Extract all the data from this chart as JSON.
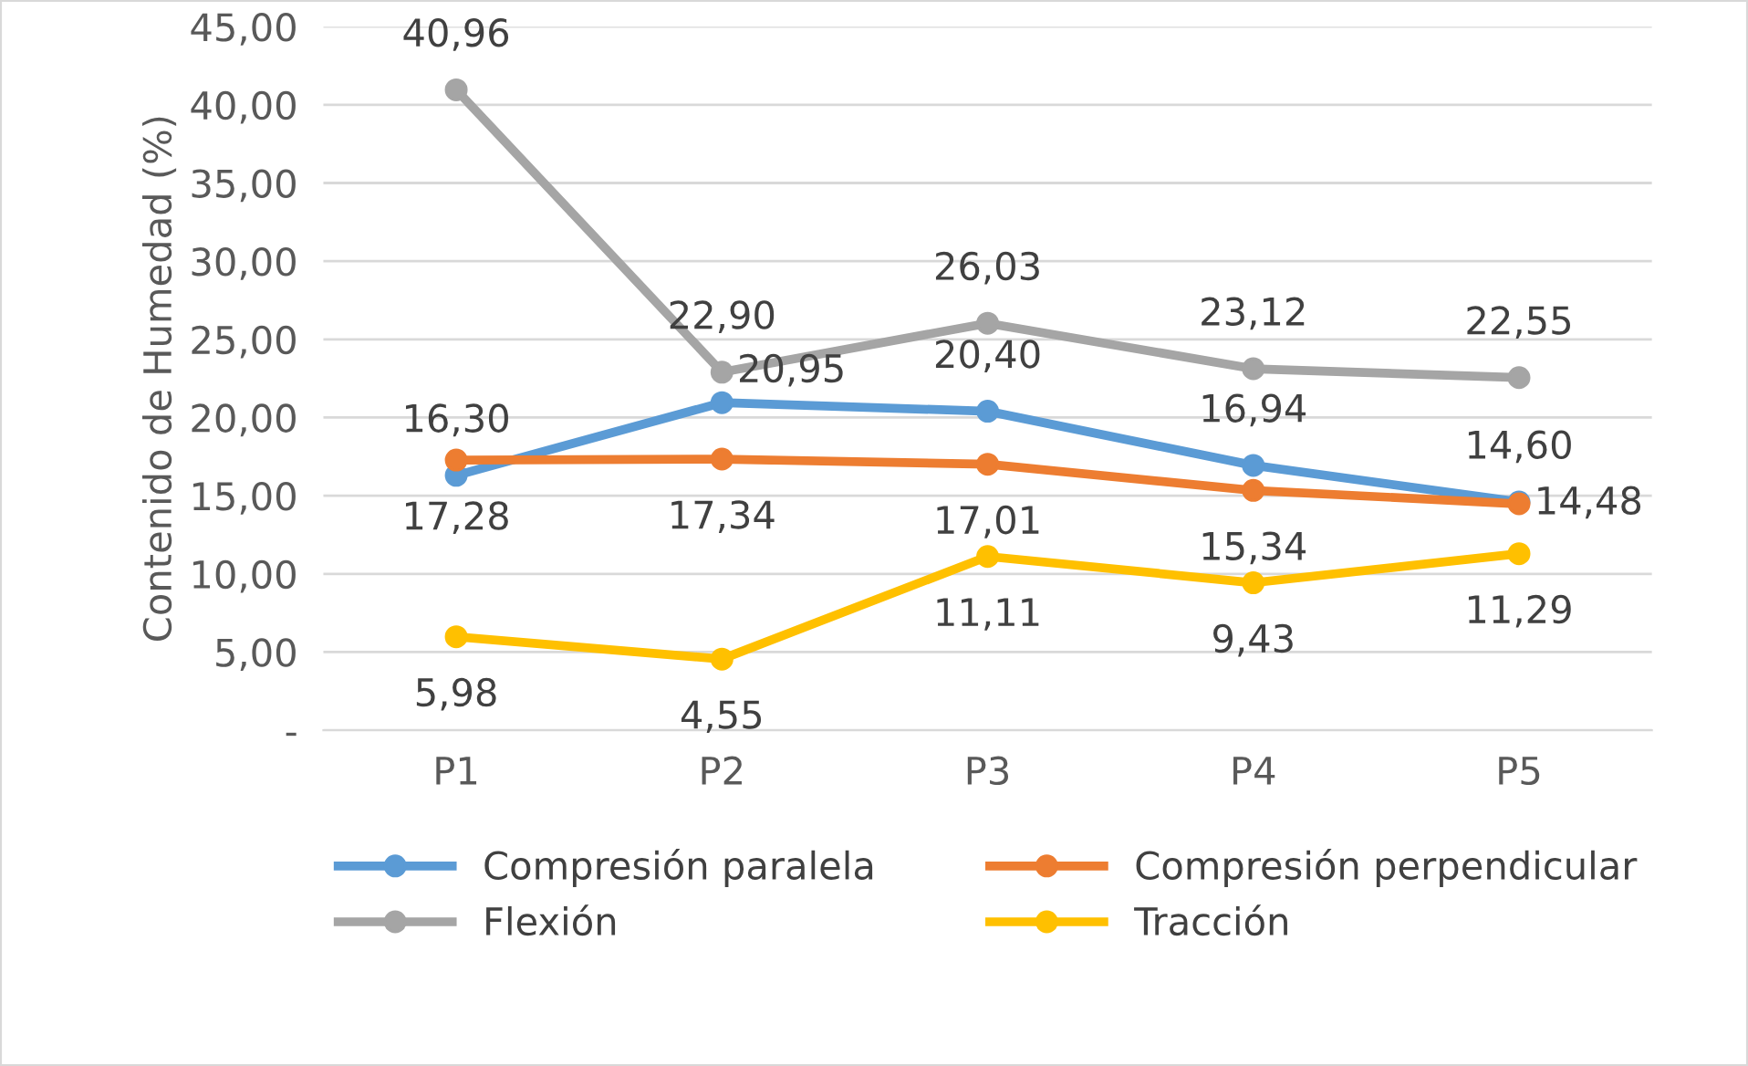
{
  "chart_data": {
    "type": "line",
    "ylabel": "Contenido de Humedad (%)",
    "categories": [
      "P1",
      "P2",
      "P3",
      "P4",
      "P5"
    ],
    "series": [
      {
        "name": "Compresión paralela",
        "color": "#5b9bd5",
        "values": [
          16.3,
          20.95,
          20.4,
          16.94,
          14.6
        ],
        "value_labels": [
          "16,30",
          "20,95",
          "20,40",
          "16,94",
          "14,60"
        ]
      },
      {
        "name": "Compresión perpendicular",
        "color": "#ed7d31",
        "values": [
          17.28,
          17.34,
          17.01,
          15.34,
          14.48
        ],
        "value_labels": [
          "17,28",
          "17,34",
          "17,01",
          "15,34",
          "14,48"
        ]
      },
      {
        "name": "Flexión",
        "color": "#a5a5a5",
        "values": [
          40.96,
          22.9,
          26.03,
          23.12,
          22.55
        ],
        "value_labels": [
          "40,96",
          "22,90",
          "26,03",
          "23,12",
          "22,55"
        ]
      },
      {
        "name": "Tracción",
        "color": "#ffc000",
        "values": [
          5.98,
          4.55,
          11.11,
          9.43,
          11.29
        ],
        "value_labels": [
          "5,98",
          "4,55",
          "11,11",
          "9,43",
          "11,29"
        ]
      }
    ],
    "ylim": [
      0,
      45
    ],
    "yticks": [
      {
        "value": 0,
        "label": "-"
      },
      {
        "value": 5,
        "label": "5,00"
      },
      {
        "value": 10,
        "label": "10,00"
      },
      {
        "value": 15,
        "label": "15,00"
      },
      {
        "value": 20,
        "label": "20,00"
      },
      {
        "value": 25,
        "label": "25,00"
      },
      {
        "value": 30,
        "label": "30,00"
      },
      {
        "value": 35,
        "label": "35,00"
      },
      {
        "value": 40,
        "label": "40,00"
      },
      {
        "value": 45,
        "label": "45,00"
      }
    ],
    "grid": "y",
    "legend": "bottom",
    "marker": "circle",
    "line_style": "solid"
  }
}
